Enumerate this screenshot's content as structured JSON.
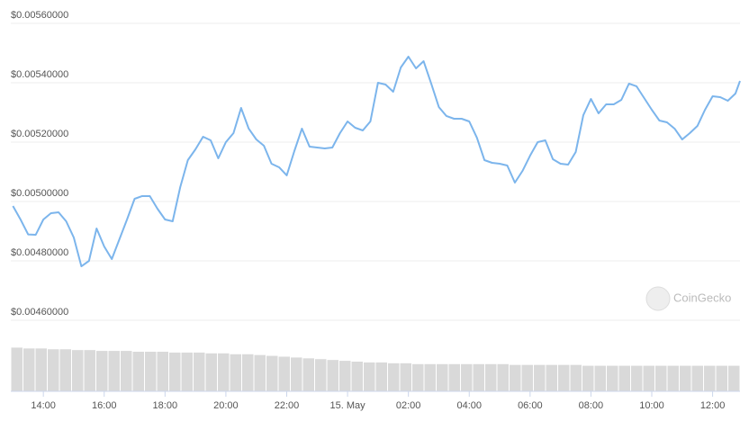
{
  "chart_data": {
    "type": "line",
    "watermark": "CoinGecko",
    "x": [
      13,
      13.25,
      13.5,
      13.75,
      14,
      14.25,
      14.5,
      14.75,
      15,
      15.25,
      15.5,
      15.75,
      16,
      16.25,
      16.5,
      16.75,
      17,
      17.25,
      17.5,
      17.75,
      18,
      18.25,
      18.5,
      18.75,
      19,
      19.25,
      19.5,
      19.75,
      20,
      20.25,
      20.5,
      20.75,
      21,
      21.25,
      21.5,
      21.75,
      22,
      22.25,
      22.5,
      22.75,
      23,
      23.25,
      23.5,
      23.75,
      24,
      24.25,
      24.5,
      24.75,
      25,
      25.25,
      25.5,
      25.75,
      26,
      26.25,
      26.5,
      26.75,
      27,
      27.25,
      27.5,
      27.75,
      28,
      28.25,
      28.5,
      28.75,
      29,
      29.25,
      29.5,
      29.75,
      30,
      30.25,
      30.5,
      30.75,
      31,
      31.25,
      31.5,
      31.75,
      32,
      32.25,
      32.5,
      32.75,
      33,
      33.25,
      33.5,
      33.75,
      34,
      34.25,
      34.5,
      34.75,
      35,
      35.25,
      35.5,
      35.75,
      36,
      36.25,
      36.5,
      36.75,
      36.9
    ],
    "series": [
      {
        "color": "#7cb5ec",
        "values": [
          0.00498485,
          0.00493939,
          0.0048891,
          0.0048879,
          0.0049394,
          0.0049606,
          0.0049636,
          0.0049333,
          0.0048788,
          0.0047818,
          0.0048,
          0.0049091,
          0.0048485,
          0.0048061,
          0.0048727,
          0.0049394,
          0.0050091,
          0.0050182,
          0.0050182,
          0.0049758,
          0.0049394,
          0.0049333,
          0.0050485,
          0.0051394,
          0.0051758,
          0.0052182,
          0.0052061,
          0.0051455,
          0.0052,
          0.0052303,
          0.0053152,
          0.0052455,
          0.0052091,
          0.0051879,
          0.0051273,
          0.0051152,
          0.0050879,
          0.0051697,
          0.0052455,
          0.0051848,
          0.0051818,
          0.0051788,
          0.0051818,
          0.0052303,
          0.0052697,
          0.0052485,
          0.0052394,
          0.0052697,
          0.0054,
          0.0053939,
          0.0053697,
          0.0054515,
          0.0054879,
          0.0054485,
          0.0054727,
          0.005397,
          0.0053182,
          0.0052879,
          0.0052788,
          0.0052788,
          0.0052697,
          0.0052152,
          0.0051394,
          0.0051303,
          0.0051273,
          0.0051212,
          0.0050636,
          0.005103,
          0.0051545,
          0.0052,
          0.0052061,
          0.0051424,
          0.0051273,
          0.0051242,
          0.0051667,
          0.0052909,
          0.0053455,
          0.005297,
          0.0053273,
          0.0053273,
          0.0053424,
          0.005397,
          0.0053879,
          0.0053485,
          0.0053091,
          0.0052727,
          0.0052667,
          0.0052455,
          0.0052091,
          0.0052303,
          0.0052545,
          0.0053091,
          0.0053545,
          0.0053515,
          0.0053394,
          0.0053636,
          0.0054061
        ]
      }
    ],
    "xlim": [
      12.93,
      36.9
    ],
    "xticks": [
      {
        "value": 14,
        "label": "14:00"
      },
      {
        "value": 16,
        "label": "16:00"
      },
      {
        "value": 18,
        "label": "18:00"
      },
      {
        "value": 20,
        "label": "20:00"
      },
      {
        "value": 22,
        "label": "22:00"
      },
      {
        "value": 24,
        "label": "15. May"
      },
      {
        "value": 26,
        "label": "02:00"
      },
      {
        "value": 28,
        "label": "04:00"
      },
      {
        "value": 30,
        "label": "06:00"
      },
      {
        "value": 32,
        "label": "08:00"
      },
      {
        "value": 34,
        "label": "10:00"
      },
      {
        "value": 36,
        "label": "12:00"
      }
    ],
    "ylim": [
      0.0046,
      0.0056
    ],
    "yticks": [
      {
        "value": 0.0046,
        "label": "$0.00460000"
      },
      {
        "value": 0.0048,
        "label": "$0.00480000"
      },
      {
        "value": 0.005,
        "label": "$0.00500000"
      },
      {
        "value": 0.0052,
        "label": "$0.00520000"
      },
      {
        "value": 0.0054,
        "label": "$0.00540000"
      },
      {
        "value": 0.0056,
        "label": "$0.00560000"
      }
    ],
    "grid": true,
    "volume": {
      "color": "#d9d9d9",
      "ylim": [
        0,
        60
      ],
      "values": [
        53,
        52,
        52,
        51,
        51,
        50,
        50,
        49,
        49,
        49,
        48,
        48,
        48,
        47,
        47,
        47,
        46,
        46,
        45,
        45,
        44,
        43,
        42,
        41,
        40,
        39,
        38,
        37,
        36,
        35,
        35,
        34,
        34,
        33,
        33,
        33,
        33,
        33,
        33,
        33,
        33,
        32,
        32,
        32,
        32,
        32,
        32,
        31,
        31,
        31,
        31,
        31,
        31,
        31,
        31,
        31,
        31,
        31,
        31,
        31
      ]
    }
  }
}
